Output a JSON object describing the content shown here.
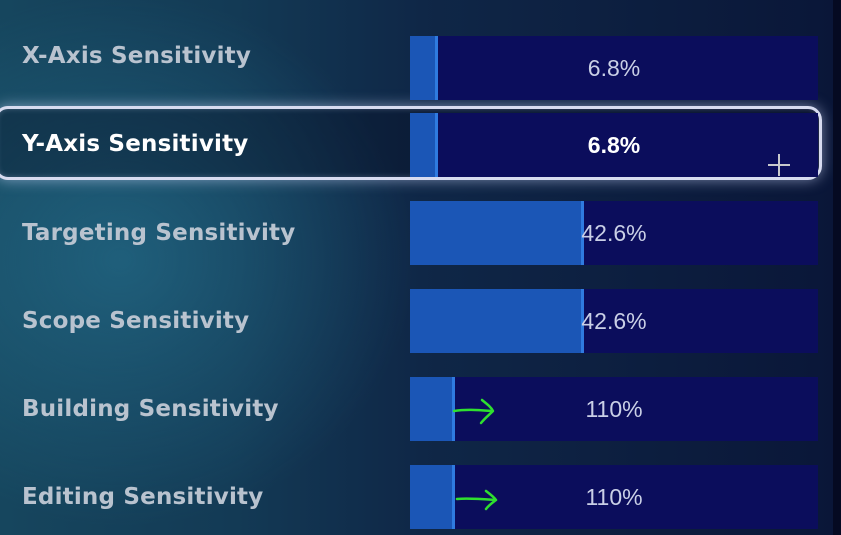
{
  "settings": [
    {
      "label": "X-Axis Sensitivity",
      "value": "6.8%",
      "level": 0.068,
      "selected": false
    },
    {
      "label": "Y-Axis Sensitivity",
      "value": "6.8%",
      "level": 0.068,
      "selected": true
    },
    {
      "label": "Targeting Sensitivity",
      "value": "42.6%",
      "level": 0.426,
      "selected": false
    },
    {
      "label": "Scope Sensitivity",
      "value": "42.6%",
      "level": 0.426,
      "selected": false
    },
    {
      "label": "Building Sensitivity",
      "value": "110%",
      "level": 0.11,
      "selected": false
    },
    {
      "label": "Editing Sensitivity",
      "value": "110%",
      "level": 0.11,
      "selected": false
    }
  ],
  "colors": {
    "track": "#0b0d5c",
    "fill": "#1b56b6",
    "annotation": "#2fe02f"
  },
  "icons": {
    "cursor": "plus-cursor-icon",
    "annotation": "hand-drawn-arrow-icon"
  }
}
